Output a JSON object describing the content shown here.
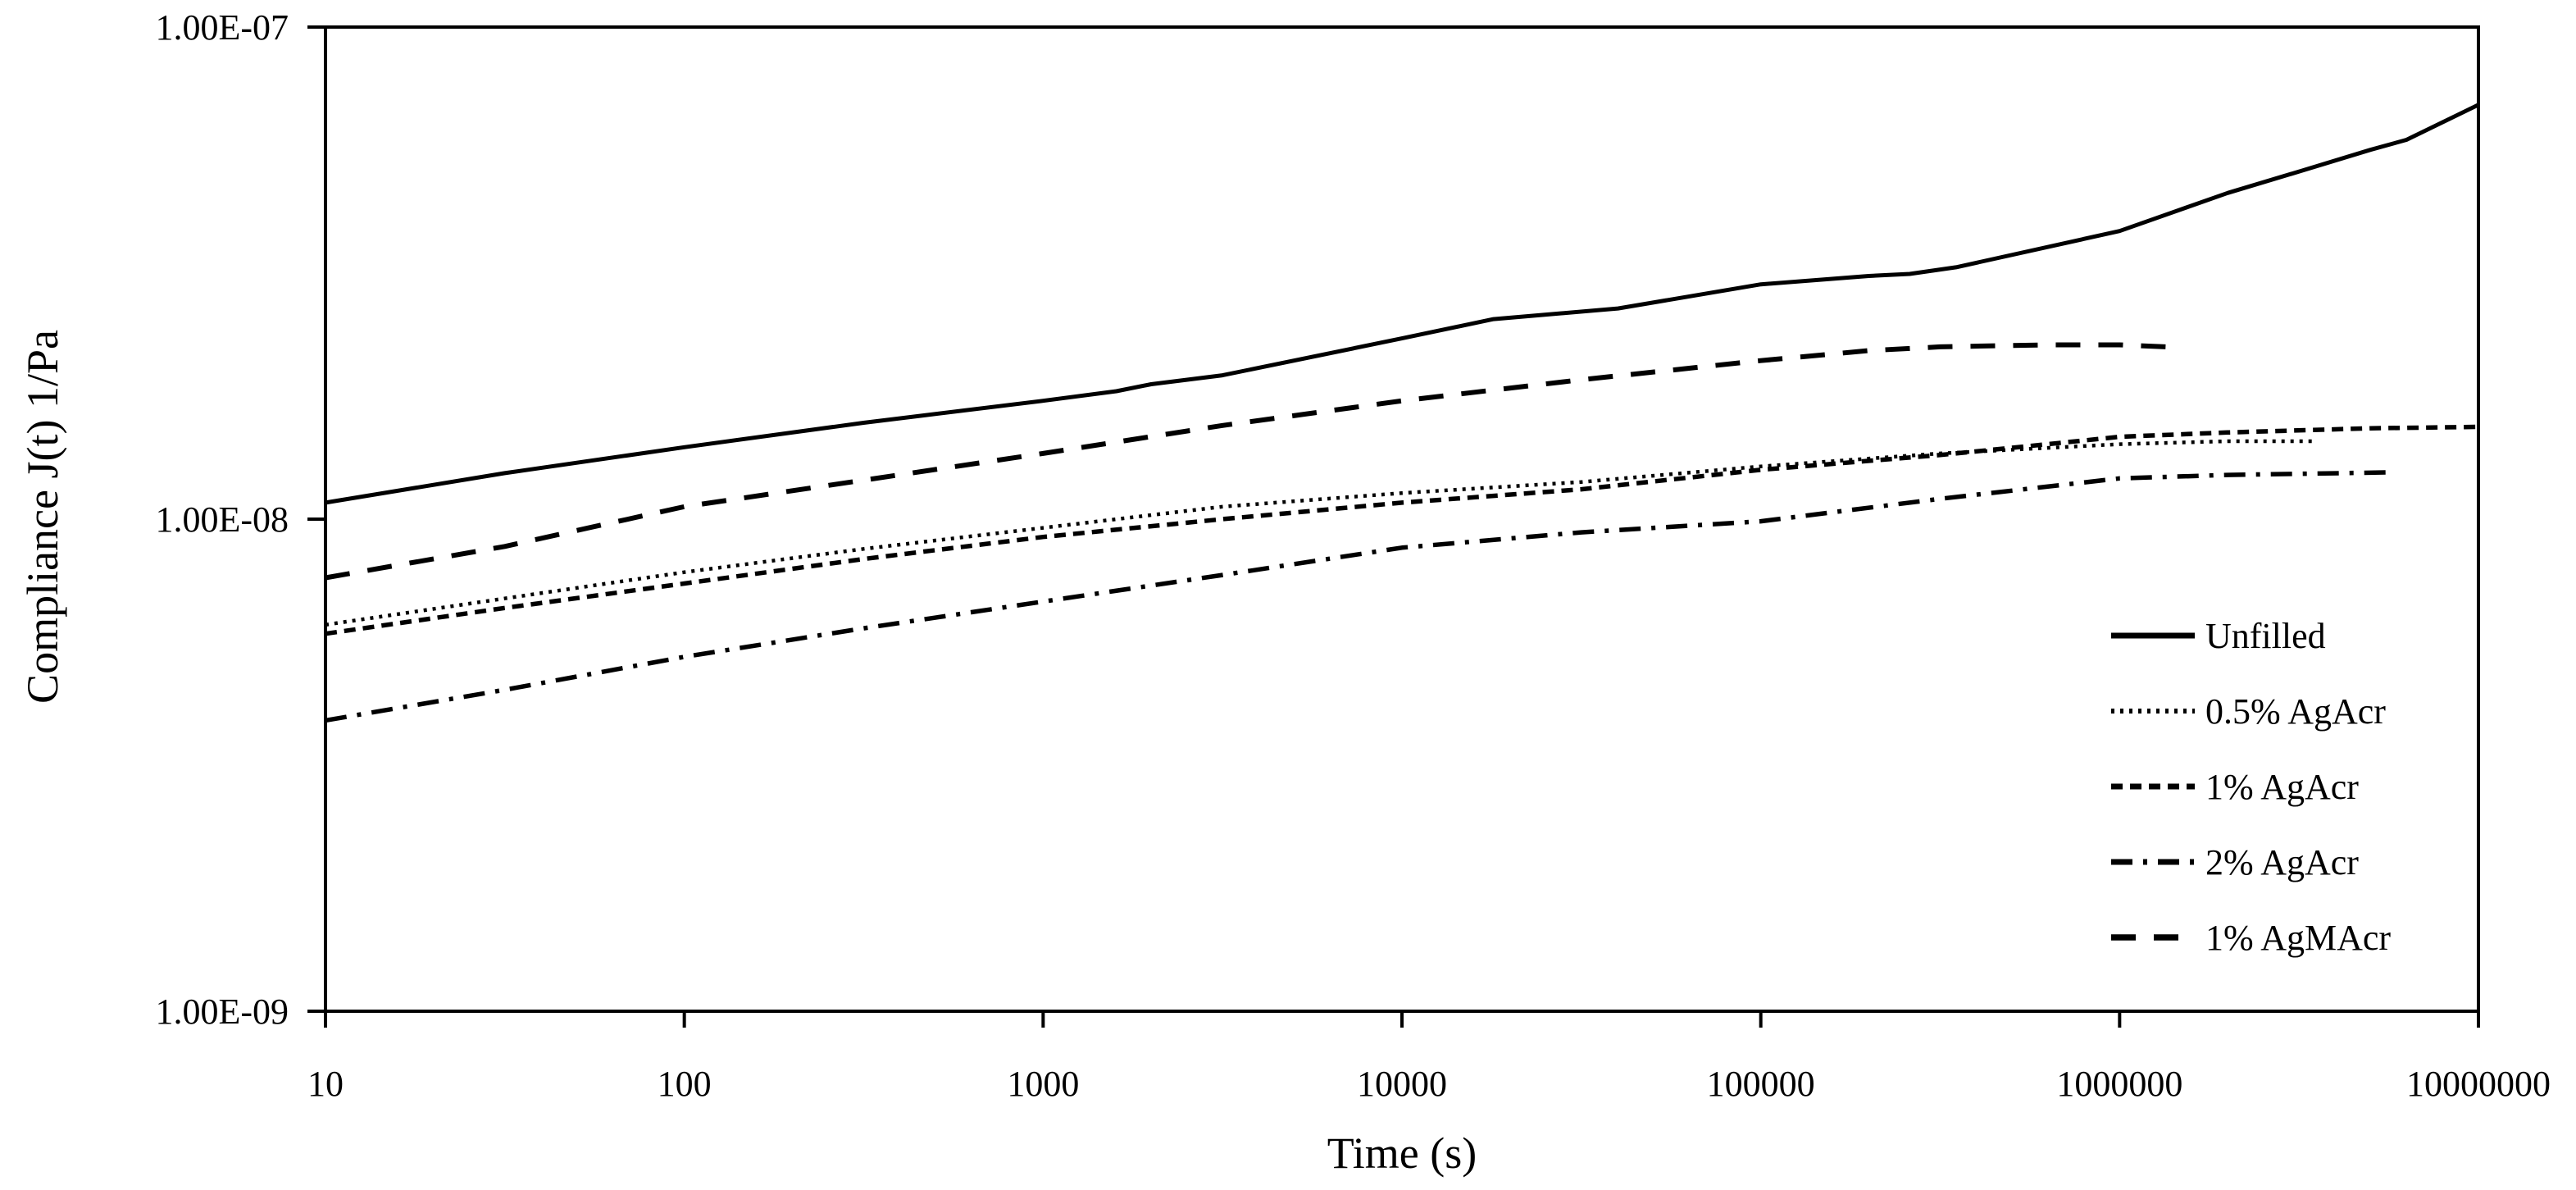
{
  "chart_data": {
    "type": "line",
    "title": "",
    "xlabel": "Time (s)",
    "ylabel": "Compliance J(t) 1/Pa",
    "x_scale": "log",
    "y_scale": "log",
    "xlim": [
      10,
      10000000
    ],
    "ylim": [
      1e-09,
      1e-07
    ],
    "x_ticks": [
      10,
      100,
      1000,
      10000,
      100000,
      1000000,
      10000000
    ],
    "x_tick_labels": [
      "10",
      "100",
      "1000",
      "10000",
      "100000",
      "1000000",
      "10000000"
    ],
    "y_ticks": [
      1e-07,
      1e-08,
      1e-09
    ],
    "y_tick_labels": [
      "1.00E-07",
      "1.00E-08",
      "1.00E-09"
    ],
    "grid": false,
    "legend_position": "inside-right",
    "axis_color": "#000000",
    "line_color": "#000000",
    "background_color": "#ffffff",
    "series": [
      {
        "name": "Unfilled",
        "line_style": "solid",
        "color": "#000000",
        "points": [
          [
            10,
            1.08e-08
          ],
          [
            31.6,
            1.24e-08
          ],
          [
            100,
            1.4e-08
          ],
          [
            316,
            1.57e-08
          ],
          [
            1000,
            1.74e-08
          ],
          [
            1600,
            1.82e-08
          ],
          [
            2000,
            1.88e-08
          ],
          [
            3162,
            1.96e-08
          ],
          [
            10000,
            2.33e-08
          ],
          [
            18000,
            2.55e-08
          ],
          [
            40000,
            2.68e-08
          ],
          [
            100000,
            3e-08
          ],
          [
            200000,
            3.12e-08
          ],
          [
            260000,
            3.15e-08
          ],
          [
            350000,
            3.25e-08
          ],
          [
            1000000,
            3.85e-08
          ],
          [
            2000000,
            4.6e-08
          ],
          [
            3200000,
            5.1e-08
          ],
          [
            5000000,
            5.63e-08
          ],
          [
            6300000,
            5.9e-08
          ],
          [
            10000000,
            6.95e-08
          ]
        ]
      },
      {
        "name": "0.5% AgAcr",
        "line_style": "dotted",
        "color": "#000000",
        "points": [
          [
            10,
            6.1e-09
          ],
          [
            31.6,
            6.9e-09
          ],
          [
            100,
            7.8e-09
          ],
          [
            316,
            8.7e-09
          ],
          [
            1000,
            9.6e-09
          ],
          [
            3162,
            1.06e-08
          ],
          [
            10000,
            1.13e-08
          ],
          [
            31620,
            1.19e-08
          ],
          [
            100000,
            1.28e-08
          ],
          [
            316200,
            1.36e-08
          ],
          [
            1000000,
            1.42e-08
          ],
          [
            2000000,
            1.44e-08
          ],
          [
            3500000,
            1.44e-08
          ]
        ]
      },
      {
        "name": "1% AgAcr",
        "line_style": "dashed",
        "color": "#000000",
        "points": [
          [
            10,
            5.85e-09
          ],
          [
            31.6,
            6.6e-09
          ],
          [
            100,
            7.4e-09
          ],
          [
            316,
            8.3e-09
          ],
          [
            1000,
            9.2e-09
          ],
          [
            3162,
            1e-08
          ],
          [
            10000,
            1.08e-08
          ],
          [
            31620,
            1.15e-08
          ],
          [
            100000,
            1.26e-08
          ],
          [
            316200,
            1.35e-08
          ],
          [
            630000,
            1.42e-08
          ],
          [
            1000000,
            1.47e-08
          ],
          [
            2000000,
            1.5e-08
          ],
          [
            5000000,
            1.53e-08
          ],
          [
            10000000,
            1.54e-08
          ]
        ]
      },
      {
        "name": "2% AgAcr",
        "line_style": "dashdot",
        "color": "#000000",
        "points": [
          [
            10,
            3.9e-09
          ],
          [
            31.6,
            4.5e-09
          ],
          [
            100,
            5.25e-09
          ],
          [
            316,
            6e-09
          ],
          [
            1000,
            6.8e-09
          ],
          [
            3162,
            7.7e-09
          ],
          [
            10000,
            8.75e-09
          ],
          [
            31620,
            9.4e-09
          ],
          [
            100000,
            9.9e-09
          ],
          [
            316200,
            1.1e-08
          ],
          [
            1000000,
            1.21e-08
          ],
          [
            2000000,
            1.23e-08
          ],
          [
            5800000,
            1.245e-08
          ]
        ]
      },
      {
        "name": "1% AgMAcr",
        "line_style": "longdash",
        "color": "#000000",
        "points": [
          [
            10,
            7.6e-09
          ],
          [
            31.6,
            8.8e-09
          ],
          [
            100,
            1.06e-08
          ],
          [
            316,
            1.2e-08
          ],
          [
            1000,
            1.36e-08
          ],
          [
            3162,
            1.55e-08
          ],
          [
            10000,
            1.74e-08
          ],
          [
            31620,
            1.92e-08
          ],
          [
            100000,
            2.1e-08
          ],
          [
            200000,
            2.2e-08
          ],
          [
            316200,
            2.24e-08
          ],
          [
            630000,
            2.26e-08
          ],
          [
            1000000,
            2.26e-08
          ],
          [
            1350000,
            2.24e-08
          ]
        ]
      }
    ]
  }
}
